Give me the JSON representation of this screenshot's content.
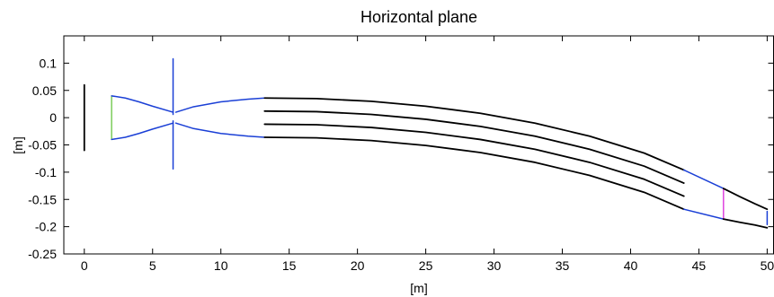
{
  "chart_data": {
    "type": "line",
    "title": "Horizontal plane",
    "xlabel": "[m]",
    "ylabel": "[m]",
    "xlim": [
      -1.5,
      50.5
    ],
    "ylim": [
      -0.25,
      0.15
    ],
    "xticks": [
      0,
      5,
      10,
      15,
      20,
      25,
      30,
      35,
      40,
      45,
      50
    ],
    "yticks": [
      -0.25,
      -0.2,
      -0.15,
      -0.1,
      -0.05,
      0,
      0.05,
      0.1
    ],
    "xtick_labels": [
      "0",
      "5",
      "10",
      "15",
      "20",
      "25",
      "30",
      "35",
      "40",
      "45",
      "50"
    ],
    "ytick_labels": [
      "-0.25",
      "-0.2",
      "-0.15",
      "-0.1",
      "-0.05",
      "0",
      "0.05",
      "0.1"
    ],
    "grid": false,
    "colors": {
      "black": "#000000",
      "blue": "#1a3fd6",
      "green": "#7ccc5a",
      "magenta": "#e044e0"
    },
    "series": [
      {
        "color": "black",
        "x": [
          0,
          0
        ],
        "y": [
          -0.06,
          0.06
        ]
      },
      {
        "color": "green",
        "x": [
          2,
          2
        ],
        "y": [
          -0.04,
          0.04
        ]
      },
      {
        "color": "blue",
        "x": [
          2,
          3,
          4,
          5,
          6.5
        ],
        "y": [
          0.04,
          0.036,
          0.029,
          0.021,
          0.01
        ]
      },
      {
        "color": "blue",
        "x": [
          2,
          3,
          4,
          5,
          6.5
        ],
        "y": [
          -0.04,
          -0.036,
          -0.029,
          -0.021,
          -0.01
        ]
      },
      {
        "color": "blue",
        "x": [
          6.5,
          6.5
        ],
        "y": [
          0.006,
          0.108
        ]
      },
      {
        "color": "blue",
        "x": [
          6.5,
          6.5
        ],
        "y": [
          -0.006,
          -0.094
        ]
      },
      {
        "color": "blue",
        "x": [
          6.7,
          8,
          10,
          12,
          13.2
        ],
        "y": [
          0.01,
          0.02,
          0.029,
          0.034,
          0.036
        ]
      },
      {
        "color": "blue",
        "x": [
          6.7,
          8,
          10,
          12,
          13.2
        ],
        "y": [
          -0.01,
          -0.02,
          -0.029,
          -0.034,
          -0.036
        ]
      },
      {
        "color": "black",
        "x": [
          13.2,
          17,
          21,
          25,
          29,
          33,
          37,
          41,
          43.9
        ],
        "y": [
          0.036,
          0.035,
          0.03,
          0.021,
          0.008,
          -0.01,
          -0.034,
          -0.065,
          -0.096
        ]
      },
      {
        "color": "black",
        "x": [
          13.2,
          17,
          21,
          25,
          29,
          33,
          37,
          41,
          43.9
        ],
        "y": [
          0.012,
          0.011,
          0.006,
          -0.003,
          -0.016,
          -0.034,
          -0.058,
          -0.089,
          -0.12
        ]
      },
      {
        "color": "black",
        "x": [
          13.2,
          17,
          21,
          25,
          29,
          33,
          37,
          41,
          43.9
        ],
        "y": [
          -0.012,
          -0.013,
          -0.018,
          -0.027,
          -0.04,
          -0.058,
          -0.082,
          -0.113,
          -0.144
        ]
      },
      {
        "color": "black",
        "x": [
          13.2,
          17,
          21,
          25,
          29,
          33,
          37,
          41,
          43.9
        ],
        "y": [
          -0.036,
          -0.037,
          -0.042,
          -0.051,
          -0.064,
          -0.082,
          -0.106,
          -0.137,
          -0.168
        ]
      },
      {
        "color": "blue",
        "x": [
          43.9,
          46.8
        ],
        "y": [
          -0.096,
          -0.13
        ]
      },
      {
        "color": "blue",
        "x": [
          43.9,
          46.8
        ],
        "y": [
          -0.168,
          -0.186
        ]
      },
      {
        "color": "magenta",
        "x": [
          46.8,
          46.8
        ],
        "y": [
          -0.13,
          -0.186
        ]
      },
      {
        "color": "black",
        "x": [
          46.8,
          48,
          49.1,
          50
        ],
        "y": [
          -0.13,
          -0.145,
          -0.158,
          -0.168
        ]
      },
      {
        "color": "black",
        "x": [
          46.8,
          48,
          49.1,
          50
        ],
        "y": [
          -0.186,
          -0.192,
          -0.197,
          -0.202
        ]
      },
      {
        "color": "blue",
        "x": [
          50,
          50
        ],
        "y": [
          -0.172,
          -0.196
        ]
      }
    ]
  }
}
